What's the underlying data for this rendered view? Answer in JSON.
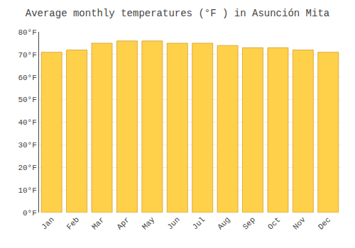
{
  "chart_data": {
    "type": "bar",
    "title": "Average monthly temperatures (°F ) in Asunción Mita",
    "categories": [
      "Jan",
      "Feb",
      "Mar",
      "Apr",
      "May",
      "Jun",
      "Jul",
      "Aug",
      "Sep",
      "Oct",
      "Nov",
      "Dec"
    ],
    "values": [
      71,
      72,
      75,
      76,
      76,
      75,
      75,
      74,
      73,
      73,
      72,
      71
    ],
    "color": "#FFD04A",
    "ylim": [
      0,
      80
    ],
    "yticks": [
      {
        "value": 0,
        "label": "0°F"
      },
      {
        "value": 10,
        "label": "10°F"
      },
      {
        "value": 20,
        "label": "20°F"
      },
      {
        "value": 30,
        "label": "30°F"
      },
      {
        "value": 40,
        "label": "40°F"
      },
      {
        "value": 50,
        "label": "50°F"
      },
      {
        "value": 60,
        "label": "60°F"
      },
      {
        "value": 70,
        "label": "70°F"
      },
      {
        "value": 80,
        "label": "80°F"
      }
    ],
    "grid": true
  }
}
